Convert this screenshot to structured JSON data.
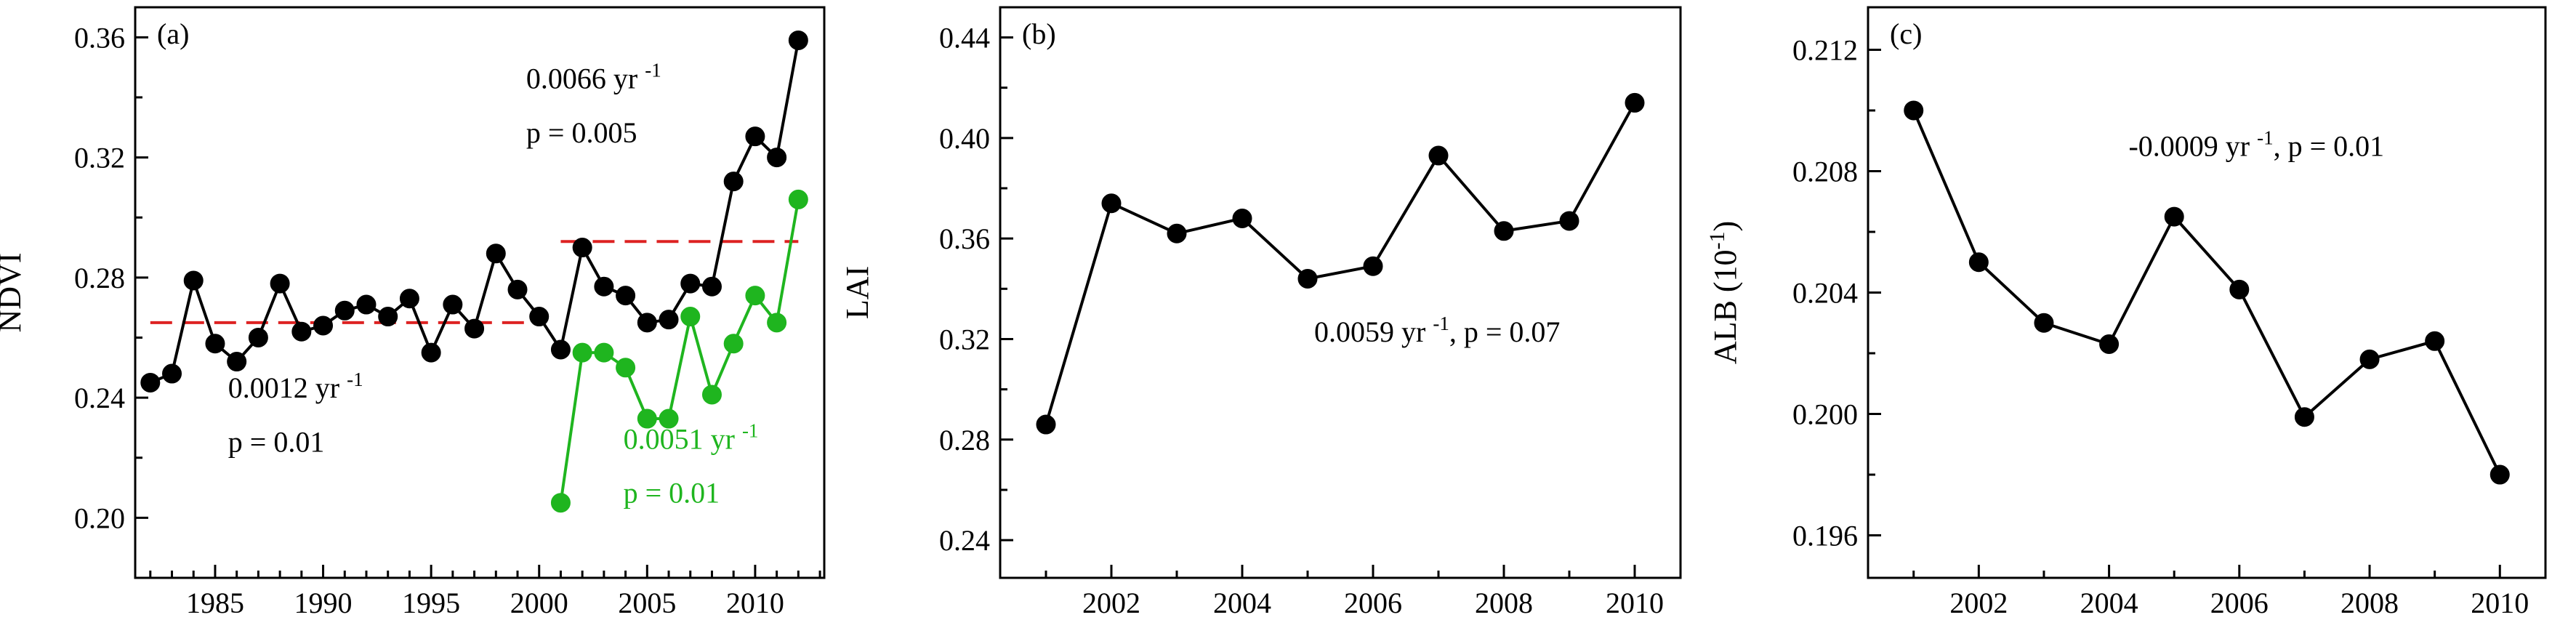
{
  "colors": {
    "black_series": "#000000",
    "green_series": "#1fb51f",
    "dashed_mean": "#dd2222"
  },
  "chart_data": [
    {
      "type": "line",
      "panel_label": "(a)",
      "ylabel": "NDVI",
      "xlim": [
        1981.3,
        2013.2
      ],
      "ylim": [
        0.18,
        0.37
      ],
      "xticks": [
        1985,
        1990,
        1995,
        2000,
        2005,
        2010
      ],
      "yticks": [
        0.2,
        0.24,
        0.28,
        0.32,
        0.36
      ],
      "ytick_labels": [
        "0.20",
        "0.24",
        "0.28",
        "0.32",
        "0.36"
      ],
      "series": [
        {
          "color": "black",
          "x": [
            1982,
            1983,
            1984,
            1985,
            1986,
            1987,
            1988,
            1989,
            1990,
            1991,
            1992,
            1993,
            1994,
            1995,
            1996,
            1997,
            1998,
            1999,
            2000,
            2001,
            2002,
            2003,
            2004,
            2005,
            2006,
            2007,
            2008,
            2009,
            2010,
            2011,
            2012
          ],
          "values": [
            0.245,
            0.248,
            0.279,
            0.258,
            0.252,
            0.26,
            0.278,
            0.262,
            0.264,
            0.269,
            0.271,
            0.267,
            0.273,
            0.255,
            0.271,
            0.263,
            0.288,
            0.276,
            0.267,
            0.256,
            0.29,
            0.277,
            0.274,
            0.265,
            0.266,
            0.278,
            0.277,
            0.312,
            0.327,
            0.32,
            0.359
          ]
        },
        {
          "color": "green",
          "x": [
            2001,
            2002,
            2003,
            2004,
            2005,
            2006,
            2007,
            2008,
            2009,
            2010,
            2011,
            2012
          ],
          "values": [
            0.205,
            0.255,
            0.255,
            0.25,
            0.233,
            0.233,
            0.267,
            0.241,
            0.258,
            0.274,
            0.265,
            0.306
          ]
        }
      ],
      "mean_lines": [
        {
          "x": [
            1982,
            2000
          ],
          "y": 0.265
        },
        {
          "x": [
            2001,
            2012
          ],
          "y": 0.292
        }
      ],
      "annotations": [
        {
          "text": "0.0066 yr",
          "sup": "-1",
          "color": "black",
          "x": 1999.4,
          "y": 0.343
        },
        {
          "text": "p = 0.005",
          "sup": "",
          "color": "black",
          "x": 1999.4,
          "y": 0.325
        },
        {
          "text": "0.0012 yr",
          "sup": "-1",
          "color": "black",
          "x": 1985.6,
          "y": 0.24
        },
        {
          "text": "p = 0.01",
          "sup": "",
          "color": "black",
          "x": 1985.6,
          "y": 0.222
        },
        {
          "text": "0.0051 yr",
          "sup": "-1",
          "color": "green",
          "x": 2003.9,
          "y": 0.223
        },
        {
          "text": "p = 0.01",
          "sup": "",
          "color": "green",
          "x": 2003.9,
          "y": 0.205
        }
      ]
    },
    {
      "type": "line",
      "panel_label": "(b)",
      "ylabel": "LAI",
      "xlim": [
        2000.3,
        2010.7
      ],
      "ylim": [
        0.225,
        0.452
      ],
      "xticks": [
        2002,
        2004,
        2006,
        2008,
        2010
      ],
      "yticks": [
        0.24,
        0.28,
        0.32,
        0.36,
        0.4,
        0.44
      ],
      "ytick_labels": [
        "0.24",
        "0.28",
        "0.32",
        "0.36",
        "0.40",
        "0.44"
      ],
      "series": [
        {
          "color": "black",
          "x": [
            2001,
            2002,
            2003,
            2004,
            2005,
            2006,
            2007,
            2008,
            2009,
            2010
          ],
          "values": [
            0.286,
            0.374,
            0.362,
            0.368,
            0.344,
            0.349,
            0.393,
            0.363,
            0.367,
            0.414
          ]
        }
      ],
      "annotations": [
        {
          "text": "0.0059 yr",
          "sup": "-1",
          "tail": ", p = 0.07",
          "color": "black",
          "x": 2005.1,
          "y": 0.319
        }
      ]
    },
    {
      "type": "line",
      "panel_label": "(c)",
      "ylabel": "ALB (10",
      "ylabel_sup": "-1",
      "ylabel_tail": ")",
      "xlim": [
        2000.3,
        2010.7
      ],
      "ylim": [
        0.1946,
        0.2134
      ],
      "xticks": [
        2002,
        2004,
        2006,
        2008,
        2010
      ],
      "yticks": [
        0.196,
        0.2,
        0.204,
        0.208,
        0.212
      ],
      "ytick_labels": [
        "0.196",
        "0.200",
        "0.204",
        "0.208",
        "0.212"
      ],
      "series": [
        {
          "color": "black",
          "x": [
            2001,
            2002,
            2003,
            2004,
            2005,
            2006,
            2007,
            2008,
            2009,
            2010
          ],
          "values": [
            0.21,
            0.205,
            0.203,
            0.2023,
            0.2065,
            0.2041,
            0.1999,
            0.2018,
            0.2024,
            0.198
          ]
        }
      ],
      "annotations": [
        {
          "text": "-0.0009 yr",
          "sup": "-1",
          "tail": ", p = 0.01",
          "color": "black",
          "x": 2004.3,
          "y": 0.2085
        }
      ]
    }
  ]
}
